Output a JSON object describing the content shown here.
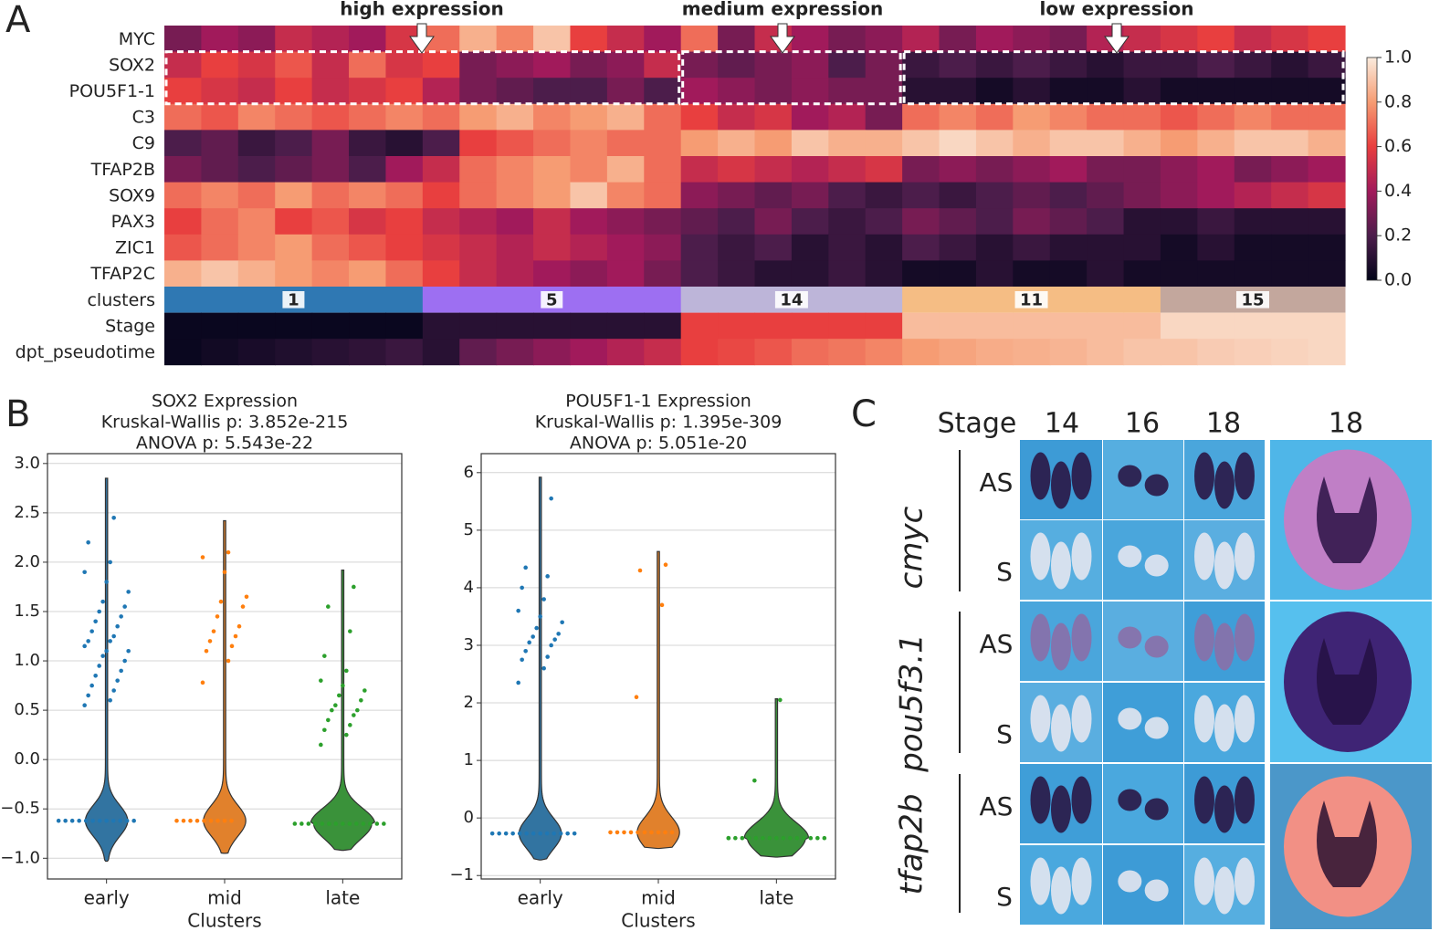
{
  "panels": [
    "A",
    "B",
    "C"
  ],
  "chart_data": [
    {
      "type": "heatmap",
      "annotations": [
        "high expression",
        "medium expression",
        "low expression"
      ],
      "colormap": "rocket",
      "colorbar_lim": [
        0,
        1
      ],
      "colorbar_ticks": [
        {
          "value": 0,
          "label": "0.0"
        },
        0.2,
        0.4,
        0.6,
        0.8,
        {
          "value": 1,
          "label": "1.0"
        }
      ],
      "rows": [
        {
          "name": "MYC",
          "values": [
            0.3,
            0.4,
            0.35,
            0.5,
            0.45,
            0.4,
            0.55,
            0.7,
            0.85,
            0.75,
            0.9,
            0.6,
            0.5,
            0.4,
            0.7,
            0.3,
            0.5,
            0.4,
            0.3,
            0.35,
            0.45,
            0.3,
            0.4,
            0.35,
            0.3,
            0.45,
            0.5,
            0.55,
            0.6,
            0.5,
            0.55,
            0.6
          ]
        },
        {
          "name": "SOX2",
          "values": [
            0.5,
            0.6,
            0.55,
            0.65,
            0.5,
            0.7,
            0.55,
            0.6,
            0.3,
            0.35,
            0.4,
            0.3,
            0.35,
            0.5,
            0.3,
            0.25,
            0.3,
            0.35,
            0.2,
            0.3,
            0.15,
            0.2,
            0.15,
            0.2,
            0.15,
            0.1,
            0.15,
            0.15,
            0.2,
            0.15,
            0.1,
            0.15
          ]
        },
        {
          "name": "POU5F1-1",
          "values": [
            0.6,
            0.55,
            0.5,
            0.6,
            0.5,
            0.55,
            0.6,
            0.45,
            0.3,
            0.25,
            0.2,
            0.2,
            0.3,
            0.2,
            0.4,
            0.35,
            0.3,
            0.35,
            0.3,
            0.3,
            0.1,
            0.1,
            0.05,
            0.1,
            0.05,
            0.05,
            0.1,
            0.05,
            0.05,
            0.05,
            0.05,
            0.05
          ]
        },
        {
          "name": "C3",
          "values": [
            0.7,
            0.65,
            0.75,
            0.7,
            0.65,
            0.7,
            0.75,
            0.7,
            0.8,
            0.85,
            0.75,
            0.8,
            0.85,
            0.7,
            0.6,
            0.5,
            0.55,
            0.4,
            0.45,
            0.3,
            0.7,
            0.75,
            0.7,
            0.8,
            0.75,
            0.7,
            0.7,
            0.65,
            0.7,
            0.75,
            0.7,
            0.7
          ]
        },
        {
          "name": "C9",
          "values": [
            0.2,
            0.25,
            0.15,
            0.2,
            0.3,
            0.15,
            0.1,
            0.2,
            0.6,
            0.65,
            0.7,
            0.75,
            0.7,
            0.7,
            0.8,
            0.85,
            0.8,
            0.9,
            0.85,
            0.85,
            0.9,
            0.95,
            0.9,
            0.85,
            0.9,
            0.9,
            0.85,
            0.8,
            0.85,
            0.9,
            0.9,
            0.85
          ]
        },
        {
          "name": "TFAP2B",
          "values": [
            0.3,
            0.25,
            0.2,
            0.25,
            0.3,
            0.2,
            0.4,
            0.5,
            0.7,
            0.75,
            0.8,
            0.75,
            0.85,
            0.7,
            0.5,
            0.55,
            0.5,
            0.45,
            0.5,
            0.55,
            0.3,
            0.35,
            0.3,
            0.35,
            0.4,
            0.3,
            0.3,
            0.35,
            0.4,
            0.3,
            0.35,
            0.4
          ]
        },
        {
          "name": "SOX9",
          "values": [
            0.7,
            0.75,
            0.7,
            0.8,
            0.7,
            0.75,
            0.7,
            0.6,
            0.7,
            0.75,
            0.8,
            0.9,
            0.75,
            0.7,
            0.35,
            0.3,
            0.25,
            0.3,
            0.2,
            0.15,
            0.2,
            0.15,
            0.2,
            0.25,
            0.2,
            0.25,
            0.3,
            0.35,
            0.4,
            0.45,
            0.5,
            0.55
          ]
        },
        {
          "name": "PAX3",
          "values": [
            0.6,
            0.7,
            0.75,
            0.6,
            0.65,
            0.55,
            0.6,
            0.5,
            0.45,
            0.4,
            0.5,
            0.4,
            0.35,
            0.3,
            0.25,
            0.2,
            0.3,
            0.2,
            0.15,
            0.2,
            0.3,
            0.25,
            0.2,
            0.3,
            0.25,
            0.2,
            0.1,
            0.1,
            0.15,
            0.1,
            0.1,
            0.1
          ]
        },
        {
          "name": "ZIC1",
          "values": [
            0.65,
            0.7,
            0.75,
            0.8,
            0.7,
            0.65,
            0.6,
            0.55,
            0.5,
            0.45,
            0.5,
            0.45,
            0.4,
            0.35,
            0.2,
            0.15,
            0.2,
            0.1,
            0.15,
            0.1,
            0.2,
            0.15,
            0.1,
            0.15,
            0.1,
            0.1,
            0.1,
            0.05,
            0.1,
            0.05,
            0.05,
            0.05
          ]
        },
        {
          "name": "TFAP2C",
          "values": [
            0.85,
            0.9,
            0.85,
            0.8,
            0.75,
            0.8,
            0.7,
            0.6,
            0.5,
            0.45,
            0.4,
            0.35,
            0.4,
            0.3,
            0.2,
            0.15,
            0.1,
            0.1,
            0.15,
            0.1,
            0.05,
            0.05,
            0.1,
            0.05,
            0.05,
            0.1,
            0.05,
            0.05,
            0.05,
            0.05,
            0.05,
            0.05
          ]
        }
      ],
      "clusters": {
        "label": "clusters",
        "groups": [
          {
            "name": "1",
            "color": "#2f78b3",
            "columns": 7
          },
          {
            "name": "5",
            "color": "#9d6ff2",
            "columns": 7
          },
          {
            "name": "14",
            "color": "#bdb5d9",
            "columns": 6
          },
          {
            "name": "11",
            "color": "#f5bd84",
            "columns": 7
          },
          {
            "name": "15",
            "color": "#c3a79d",
            "columns": 5
          }
        ]
      },
      "tracks": [
        {
          "name": "Stage",
          "values": [
            0.02,
            0.02,
            0.02,
            0.02,
            0.02,
            0.02,
            0.02,
            0.1,
            0.1,
            0.1,
            0.1,
            0.1,
            0.1,
            0.1,
            0.6,
            0.6,
            0.6,
            0.6,
            0.6,
            0.6,
            0.88,
            0.88,
            0.88,
            0.88,
            0.88,
            0.88,
            0.88,
            0.95,
            0.95,
            0.95,
            0.95,
            0.95
          ]
        },
        {
          "name": "dpt_pseudotime",
          "values": [
            0.02,
            0.04,
            0.06,
            0.08,
            0.1,
            0.12,
            0.15,
            0.1,
            0.25,
            0.3,
            0.35,
            0.4,
            0.45,
            0.5,
            0.6,
            0.62,
            0.65,
            0.7,
            0.72,
            0.75,
            0.8,
            0.82,
            0.84,
            0.85,
            0.86,
            0.88,
            0.9,
            0.9,
            0.92,
            0.93,
            0.94,
            0.95
          ]
        }
      ]
    },
    {
      "type": "violin",
      "title": [
        "SOX2 Expression",
        "Kruskal-Wallis p: 3.852e-215",
        "ANOVA p: 5.543e-22"
      ],
      "xlabel": "Clusters",
      "categories": [
        "early",
        "mid",
        "late"
      ],
      "ylim": [
        -1.21,
        3.1
      ],
      "yticks": [
        {
          "value": -1,
          "label": "−1.0"
        },
        {
          "value": -0.5,
          "label": "−0.5"
        },
        {
          "value": 0,
          "label": "0.0"
        },
        0.5,
        {
          "value": 1,
          "label": "1.0"
        },
        1.5,
        {
          "value": 2,
          "label": "2.0"
        },
        2.5,
        {
          "value": 3,
          "label": "3.0"
        }
      ],
      "grid": true,
      "violins": [
        {
          "color": "#3274a1",
          "point_color": "#1f77b4",
          "min": -1.03,
          "max": 2.85,
          "mode": -0.62,
          "points": [
            0.55,
            0.6,
            0.65,
            0.7,
            0.75,
            0.8,
            0.85,
            0.9,
            0.95,
            1.0,
            1.05,
            1.1,
            1.1,
            1.15,
            1.2,
            1.2,
            1.25,
            1.3,
            1.35,
            1.4,
            1.45,
            1.5,
            1.55,
            1.6,
            1.7,
            1.8,
            1.9,
            2.0,
            2.2,
            2.45,
            -0.62,
            -0.62,
            -0.62,
            -0.62,
            -0.62,
            -0.62,
            -0.62,
            -0.62,
            -0.62,
            -0.62,
            -0.62,
            -0.62
          ]
        },
        {
          "color": "#e1812c",
          "point_color": "#ff7f0e",
          "min": -0.95,
          "max": 2.42,
          "mode": -0.62,
          "points": [
            0.78,
            1.0,
            1.1,
            1.15,
            1.2,
            1.25,
            1.3,
            1.35,
            1.45,
            1.55,
            1.6,
            1.65,
            1.9,
            2.05,
            2.1,
            -0.62,
            -0.62,
            -0.62,
            -0.62,
            -0.62,
            -0.62,
            -0.62,
            -0.62,
            -0.62
          ]
        },
        {
          "color": "#3a923a",
          "point_color": "#2ca02c",
          "min": -0.92,
          "max": 1.92,
          "mode": -0.65,
          "points": [
            0.15,
            0.25,
            0.3,
            0.35,
            0.4,
            0.45,
            0.5,
            0.5,
            0.55,
            0.6,
            0.65,
            0.7,
            0.75,
            0.8,
            0.9,
            1.05,
            1.3,
            1.55,
            1.75,
            -0.65,
            -0.65,
            -0.65,
            -0.65,
            -0.65,
            -0.65,
            -0.65,
            -0.65,
            -0.65,
            -0.65,
            -0.65,
            -0.65,
            -0.65,
            -0.65
          ]
        }
      ]
    },
    {
      "type": "violin",
      "title": [
        "POU5F1-1 Expression",
        "Kruskal-Wallis p: 1.395e-309",
        "ANOVA p: 5.051e-20"
      ],
      "xlabel": "Clusters",
      "categories": [
        "early",
        "mid",
        "late"
      ],
      "ylim": [
        -1.06,
        6.33
      ],
      "yticks": [
        {
          "value": -1,
          "label": "−1"
        },
        0,
        1,
        2,
        3,
        4,
        5,
        6
      ],
      "grid": true,
      "violins": [
        {
          "color": "#3274a1",
          "point_color": "#1f77b4",
          "min": -0.73,
          "max": 5.92,
          "mode": -0.27,
          "points": [
            2.35,
            2.6,
            2.75,
            2.8,
            2.9,
            3.0,
            3.05,
            3.1,
            3.15,
            3.2,
            3.3,
            3.4,
            3.5,
            3.6,
            3.8,
            4.0,
            4.2,
            4.35,
            5.55,
            -0.27,
            -0.27,
            -0.27,
            -0.27,
            -0.27,
            -0.27,
            -0.27,
            -0.27,
            -0.27,
            -0.27,
            -0.27,
            -0.27,
            -0.27
          ]
        },
        {
          "color": "#e1812c",
          "point_color": "#ff7f0e",
          "min": -0.53,
          "max": 4.63,
          "mode": -0.25,
          "points": [
            2.1,
            3.7,
            4.3,
            4.4,
            -0.25,
            -0.25,
            -0.25,
            -0.25,
            -0.25,
            -0.25,
            -0.25,
            -0.25,
            -0.25,
            -0.25
          ]
        },
        {
          "color": "#3a923a",
          "point_color": "#2ca02c",
          "min": -0.68,
          "max": 2.07,
          "mode": -0.35,
          "points": [
            0.65,
            2.05,
            -0.35,
            -0.35,
            -0.35,
            -0.35,
            -0.35,
            -0.35,
            -0.35,
            -0.35,
            -0.35,
            -0.35,
            -0.35,
            -0.35,
            -0.35,
            -0.35,
            -0.35,
            -0.35
          ]
        }
      ]
    }
  ],
  "photo_panel": {
    "stage_label": "Stage",
    "stages": [
      "14",
      "16",
      "18",
      "18"
    ],
    "genes": [
      {
        "name": "cmyc",
        "rows": [
          "AS",
          "S"
        ]
      },
      {
        "name": "pou5f3.1",
        "rows": [
          "AS",
          "S"
        ]
      },
      {
        "name": "tfap2b",
        "rows": [
          "AS",
          "S"
        ]
      }
    ]
  }
}
